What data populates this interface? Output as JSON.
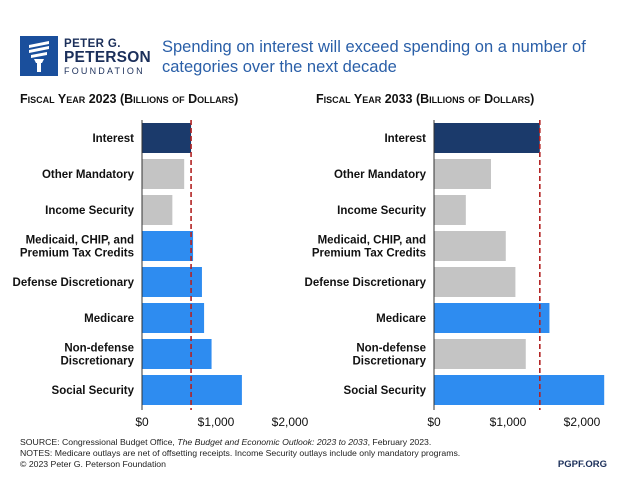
{
  "logo": {
    "line1": "PETER G.",
    "line2": "PETERSON",
    "line3": "FOUNDATION"
  },
  "headline": "Spending on interest will exceed spending on a number of categories over the next decade",
  "chart_data": [
    {
      "type": "bar",
      "orientation": "horizontal",
      "title": "Fiscal Year 2023 (Billions of Dollars)",
      "categories": [
        "Interest",
        "Other Mandatory",
        "Income Security",
        "Medicaid, CHIP, and Premium Tax Credits",
        "Defense Discretionary",
        "Medicare",
        "Non-defense Discretionary",
        "Social Security"
      ],
      "values": [
        663,
        570,
        410,
        690,
        810,
        839,
        940,
        1350
      ],
      "colors": [
        "#1b3a6b",
        "#c4c4c4",
        "#c4c4c4",
        "#2e8cf0",
        "#2e8cf0",
        "#2e8cf0",
        "#2e8cf0",
        "#2e8cf0"
      ],
      "reference_line": 663,
      "xticks": [
        "$0",
        "$1,000",
        "$2,000"
      ],
      "xlim": [
        0,
        2000
      ]
    },
    {
      "type": "bar",
      "orientation": "horizontal",
      "title": "Fiscal Year 2033 (Billions of Dollars)",
      "categories": [
        "Interest",
        "Other Mandatory",
        "Income Security",
        "Medicaid, CHIP, and Premium Tax Credits",
        "Defense Discretionary",
        "Medicare",
        "Non-defense Discretionary",
        "Social Security"
      ],
      "values": [
        1430,
        770,
        430,
        970,
        1100,
        1560,
        1240,
        2300
      ],
      "colors": [
        "#1b3a6b",
        "#c4c4c4",
        "#c4c4c4",
        "#c4c4c4",
        "#c4c4c4",
        "#2e8cf0",
        "#c4c4c4",
        "#2e8cf0"
      ],
      "reference_line": 1430,
      "xticks": [
        "$0",
        "$1,000",
        "$2,000"
      ],
      "xlim": [
        0,
        2500
      ]
    }
  ],
  "footer": {
    "source_prefix": "SOURCE: Congressional Budget Office, ",
    "source_title": "The Budget and Economic Outlook: 2023 to 2033",
    "source_suffix": ", February 2023.",
    "notes": "NOTES: Medicare outlays are net of offsetting receipts. Income Security outlays include only mandatory programs.",
    "copyright": "© 2023 Peter G. Peterson Foundation",
    "url": "PGPF.ORG"
  }
}
